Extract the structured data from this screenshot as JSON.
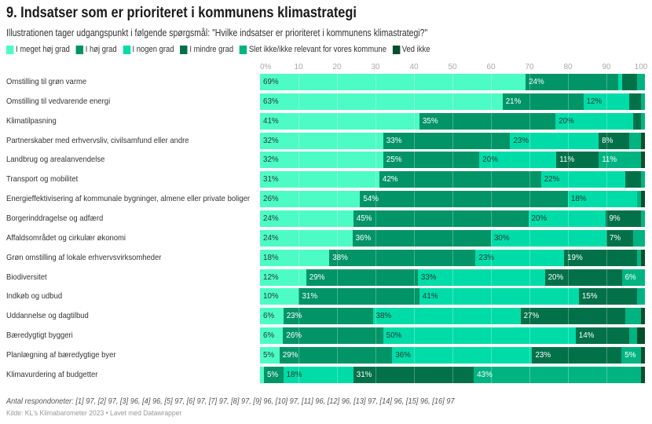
{
  "chart_data": {
    "type": "bar",
    "orientation": "horizontal",
    "stacked": true,
    "title": "9. Indsatser som er prioriteret i kommunens klimastrategi",
    "subtitle": "Illustrationen tager udgangspunkt i følgende spørgsmål: \"Hvilke indsatser er prioriteret i kommunens klimastrategi?\"",
    "xlabel": "",
    "ylabel": "",
    "xlim": [
      0,
      100
    ],
    "x_ticks": [
      "0%",
      "10",
      "20",
      "30",
      "40",
      "50",
      "60",
      "70",
      "80",
      "90",
      "100"
    ],
    "grid": true,
    "legend_position": "top-left",
    "series": [
      {
        "name": "I meget høj grad",
        "color": "#4dfcc5",
        "label_color": "#2b3a33",
        "values": [
          69,
          63,
          41,
          32,
          32,
          31,
          26,
          24,
          24,
          18,
          12,
          10,
          6,
          6,
          5,
          1
        ]
      },
      {
        "name": "I høj grad",
        "color": "#009467",
        "label_color": "#ffffff",
        "values": [
          24,
          21,
          35,
          33,
          25,
          42,
          54,
          45,
          36,
          38,
          29,
          31,
          23,
          26,
          29,
          5
        ]
      },
      {
        "name": "I nogen grad",
        "color": "#00dca8",
        "label_color": "#2b3a33",
        "values": [
          1,
          12,
          20,
          23,
          20,
          22,
          18,
          20,
          30,
          23,
          33,
          41,
          38,
          50,
          36,
          18
        ]
      },
      {
        "name": "I mindre grad",
        "color": "#02714a",
        "label_color": "#ffffff",
        "values": [
          4,
          3,
          2,
          8,
          11,
          4,
          0,
          9,
          7,
          19,
          20,
          15,
          27,
          14,
          23,
          31
        ]
      },
      {
        "name": "Slet ikke/ikke relevant for vores kommune",
        "color": "#00b482",
        "label_color": "#ffffff",
        "values": [
          2,
          1,
          1,
          3,
          11,
          1,
          1,
          1,
          3,
          1,
          6,
          2,
          4,
          2,
          5,
          43
        ]
      },
      {
        "name": "Ved ikke",
        "color": "#034f2b",
        "label_color": "#ffffff",
        "values": [
          0,
          0,
          0,
          1,
          1,
          0,
          1,
          0,
          0,
          1,
          0,
          0,
          1,
          2,
          1,
          1
        ]
      }
    ],
    "categories": [
      "Omstilling til grøn varme",
      "Omstilling til vedvarende energi",
      "Klimatilpasning",
      "Partnerskaber med erhvervsliv, civilsamfund eller andre",
      "Landbrug og arealanvendelse",
      "Transport og mobilitet",
      "Energieffektivisering af kommunale bygninger, almene eller private boliger",
      "Borgerinddragelse og adfærd",
      "Affaldsområdet og cirkulær økonomi",
      "Grøn omstilling af lokale erhvervsvirksomheder",
      "Biodiversitet",
      "Indkøb og udbud",
      "Uddannelse og dagtilbud",
      "Bæredygtigt byggeri",
      "Planlægning af bæredygtige byer",
      "Klimavurdering af budgetter"
    ],
    "data_labels": [
      [
        "69%",
        "24%",
        "",
        "",
        "",
        ""
      ],
      [
        "63%",
        "21%",
        "12%",
        "",
        "",
        ""
      ],
      [
        "41%",
        "35%",
        "20%",
        "",
        "",
        ""
      ],
      [
        "32%",
        "33%",
        "23%",
        "8%",
        "",
        ""
      ],
      [
        "32%",
        "25%",
        "20%",
        "11%",
        "11%",
        ""
      ],
      [
        "31%",
        "42%",
        "22%",
        "",
        "",
        ""
      ],
      [
        "26%",
        "54%",
        "18%",
        "",
        "",
        ""
      ],
      [
        "24%",
        "45%",
        "20%",
        "9%",
        "",
        ""
      ],
      [
        "24%",
        "36%",
        "30%",
        "7%",
        "",
        ""
      ],
      [
        "18%",
        "38%",
        "23%",
        "19%",
        "",
        ""
      ],
      [
        "12%",
        "29%",
        "33%",
        "20%",
        "6%",
        ""
      ],
      [
        "10%",
        "31%",
        "41%",
        "15%",
        "",
        ""
      ],
      [
        "6%",
        "23%",
        "38%",
        "27%",
        "",
        ""
      ],
      [
        "6%",
        "26%",
        "50%",
        "14%",
        "",
        ""
      ],
      [
        "5%",
        "29%",
        "36%",
        "23%",
        "5%",
        ""
      ],
      [
        "",
        "5%",
        "18%",
        "31%",
        "43%",
        ""
      ]
    ]
  },
  "footnote": "Antal respondoneter: [1] 97, [2] 97, [3] 96, [4] 96, [5] 97, [6] 97, [7] 97, [8] 97, [9] 96, [10] 97, [11] 96, [12] 96, [13] 97, [14] 96, [15] 96, [16] 97",
  "source": "Kilde: KL's Klimabarometer 2023 • Lavet med Datawrapper"
}
